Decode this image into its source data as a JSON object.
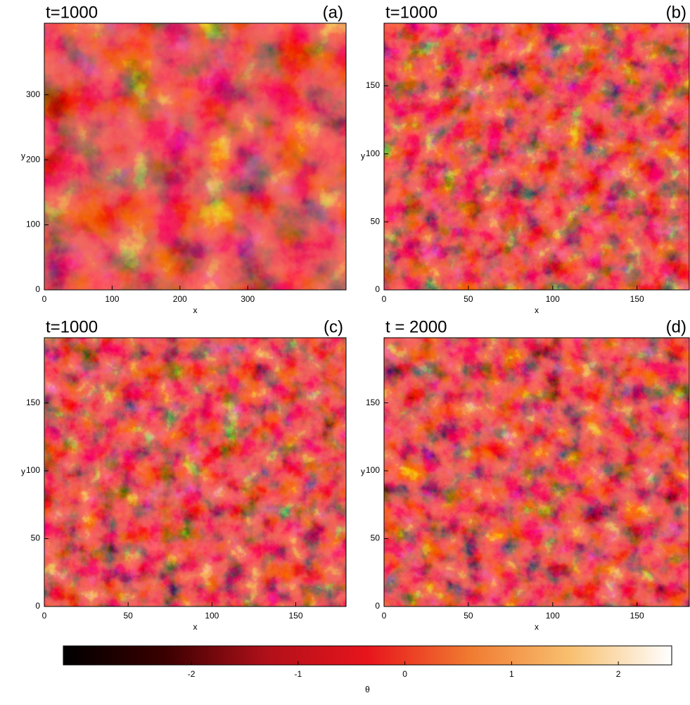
{
  "chart_data": [
    {
      "type": "heatmap",
      "title": "t=1000",
      "panel_label": "(a)",
      "xlabel": "x",
      "ylabel": "y",
      "xlim": [
        0,
        445
      ],
      "ylim": [
        0,
        410
      ],
      "xticks": [
        0,
        100,
        200,
        300
      ],
      "yticks": [
        0,
        100,
        200,
        300
      ]
    },
    {
      "type": "heatmap",
      "title": "t=1000",
      "panel_label": "(b)",
      "xlabel": "x",
      "ylabel": "y",
      "xlim": [
        0,
        181
      ],
      "ylim": [
        0,
        196
      ],
      "xticks": [
        0,
        50,
        100,
        150
      ],
      "yticks": [
        0,
        50,
        100,
        150
      ]
    },
    {
      "type": "heatmap",
      "title": "t=1000",
      "panel_label": "(c)",
      "xlabel": "x",
      "ylabel": "y",
      "xlim": [
        0,
        180
      ],
      "ylim": [
        0,
        198
      ],
      "xticks": [
        0,
        50,
        100,
        150
      ],
      "yticks": [
        0,
        50,
        100,
        150
      ]
    },
    {
      "type": "heatmap",
      "title": "t = 2000",
      "panel_label": "(d)",
      "xlabel": "x",
      "ylabel": "y",
      "xlim": [
        0,
        181
      ],
      "ylim": [
        0,
        198
      ],
      "xticks": [
        0,
        50,
        100,
        150
      ],
      "yticks": [
        0,
        50,
        100,
        150
      ]
    },
    {
      "type": "colorbar",
      "xlabel": "θ",
      "xlim": [
        -3.2,
        2.5
      ],
      "xticks": [
        -2,
        -1,
        0,
        1,
        2
      ],
      "colors": [
        "#000000",
        "#3a0000",
        "#b0101a",
        "#e8141c",
        "#f07a30",
        "#f8c070",
        "#ffffff"
      ]
    }
  ]
}
